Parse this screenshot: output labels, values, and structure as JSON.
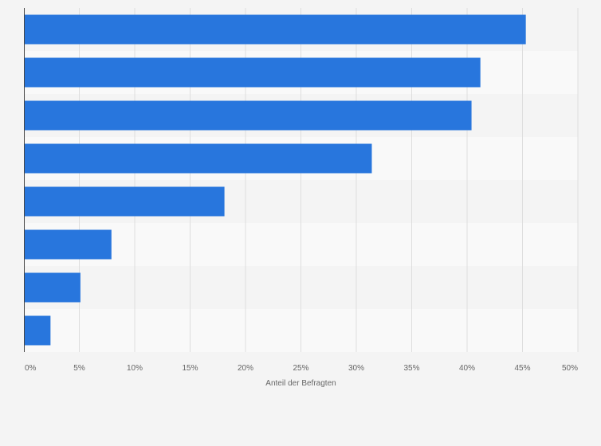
{
  "chart_data": {
    "type": "bar",
    "orientation": "horizontal",
    "categories": [
      "",
      "",
      "",
      "",
      "",
      "",
      "",
      ""
    ],
    "values": [
      45.3,
      41.2,
      40.4,
      31.4,
      18.1,
      7.9,
      5.1,
      2.4
    ],
    "xlabel": "Anteil der Befragten",
    "ylabel": "",
    "xlim": [
      0,
      50
    ],
    "ticks": [
      0,
      5,
      10,
      15,
      20,
      25,
      30,
      35,
      40,
      45,
      50
    ],
    "tick_labels": [
      "0%",
      "5%",
      "10%",
      "15%",
      "20%",
      "25%",
      "30%",
      "35%",
      "40%",
      "45%",
      "50%"
    ],
    "grid": true,
    "legend": "none"
  },
  "colors": {
    "bar": "#2876dd",
    "background": "#f4f4f4",
    "band_alt": "#f9f9f9",
    "grid": "#dedede",
    "axis": "#444444",
    "text": "#666666"
  }
}
